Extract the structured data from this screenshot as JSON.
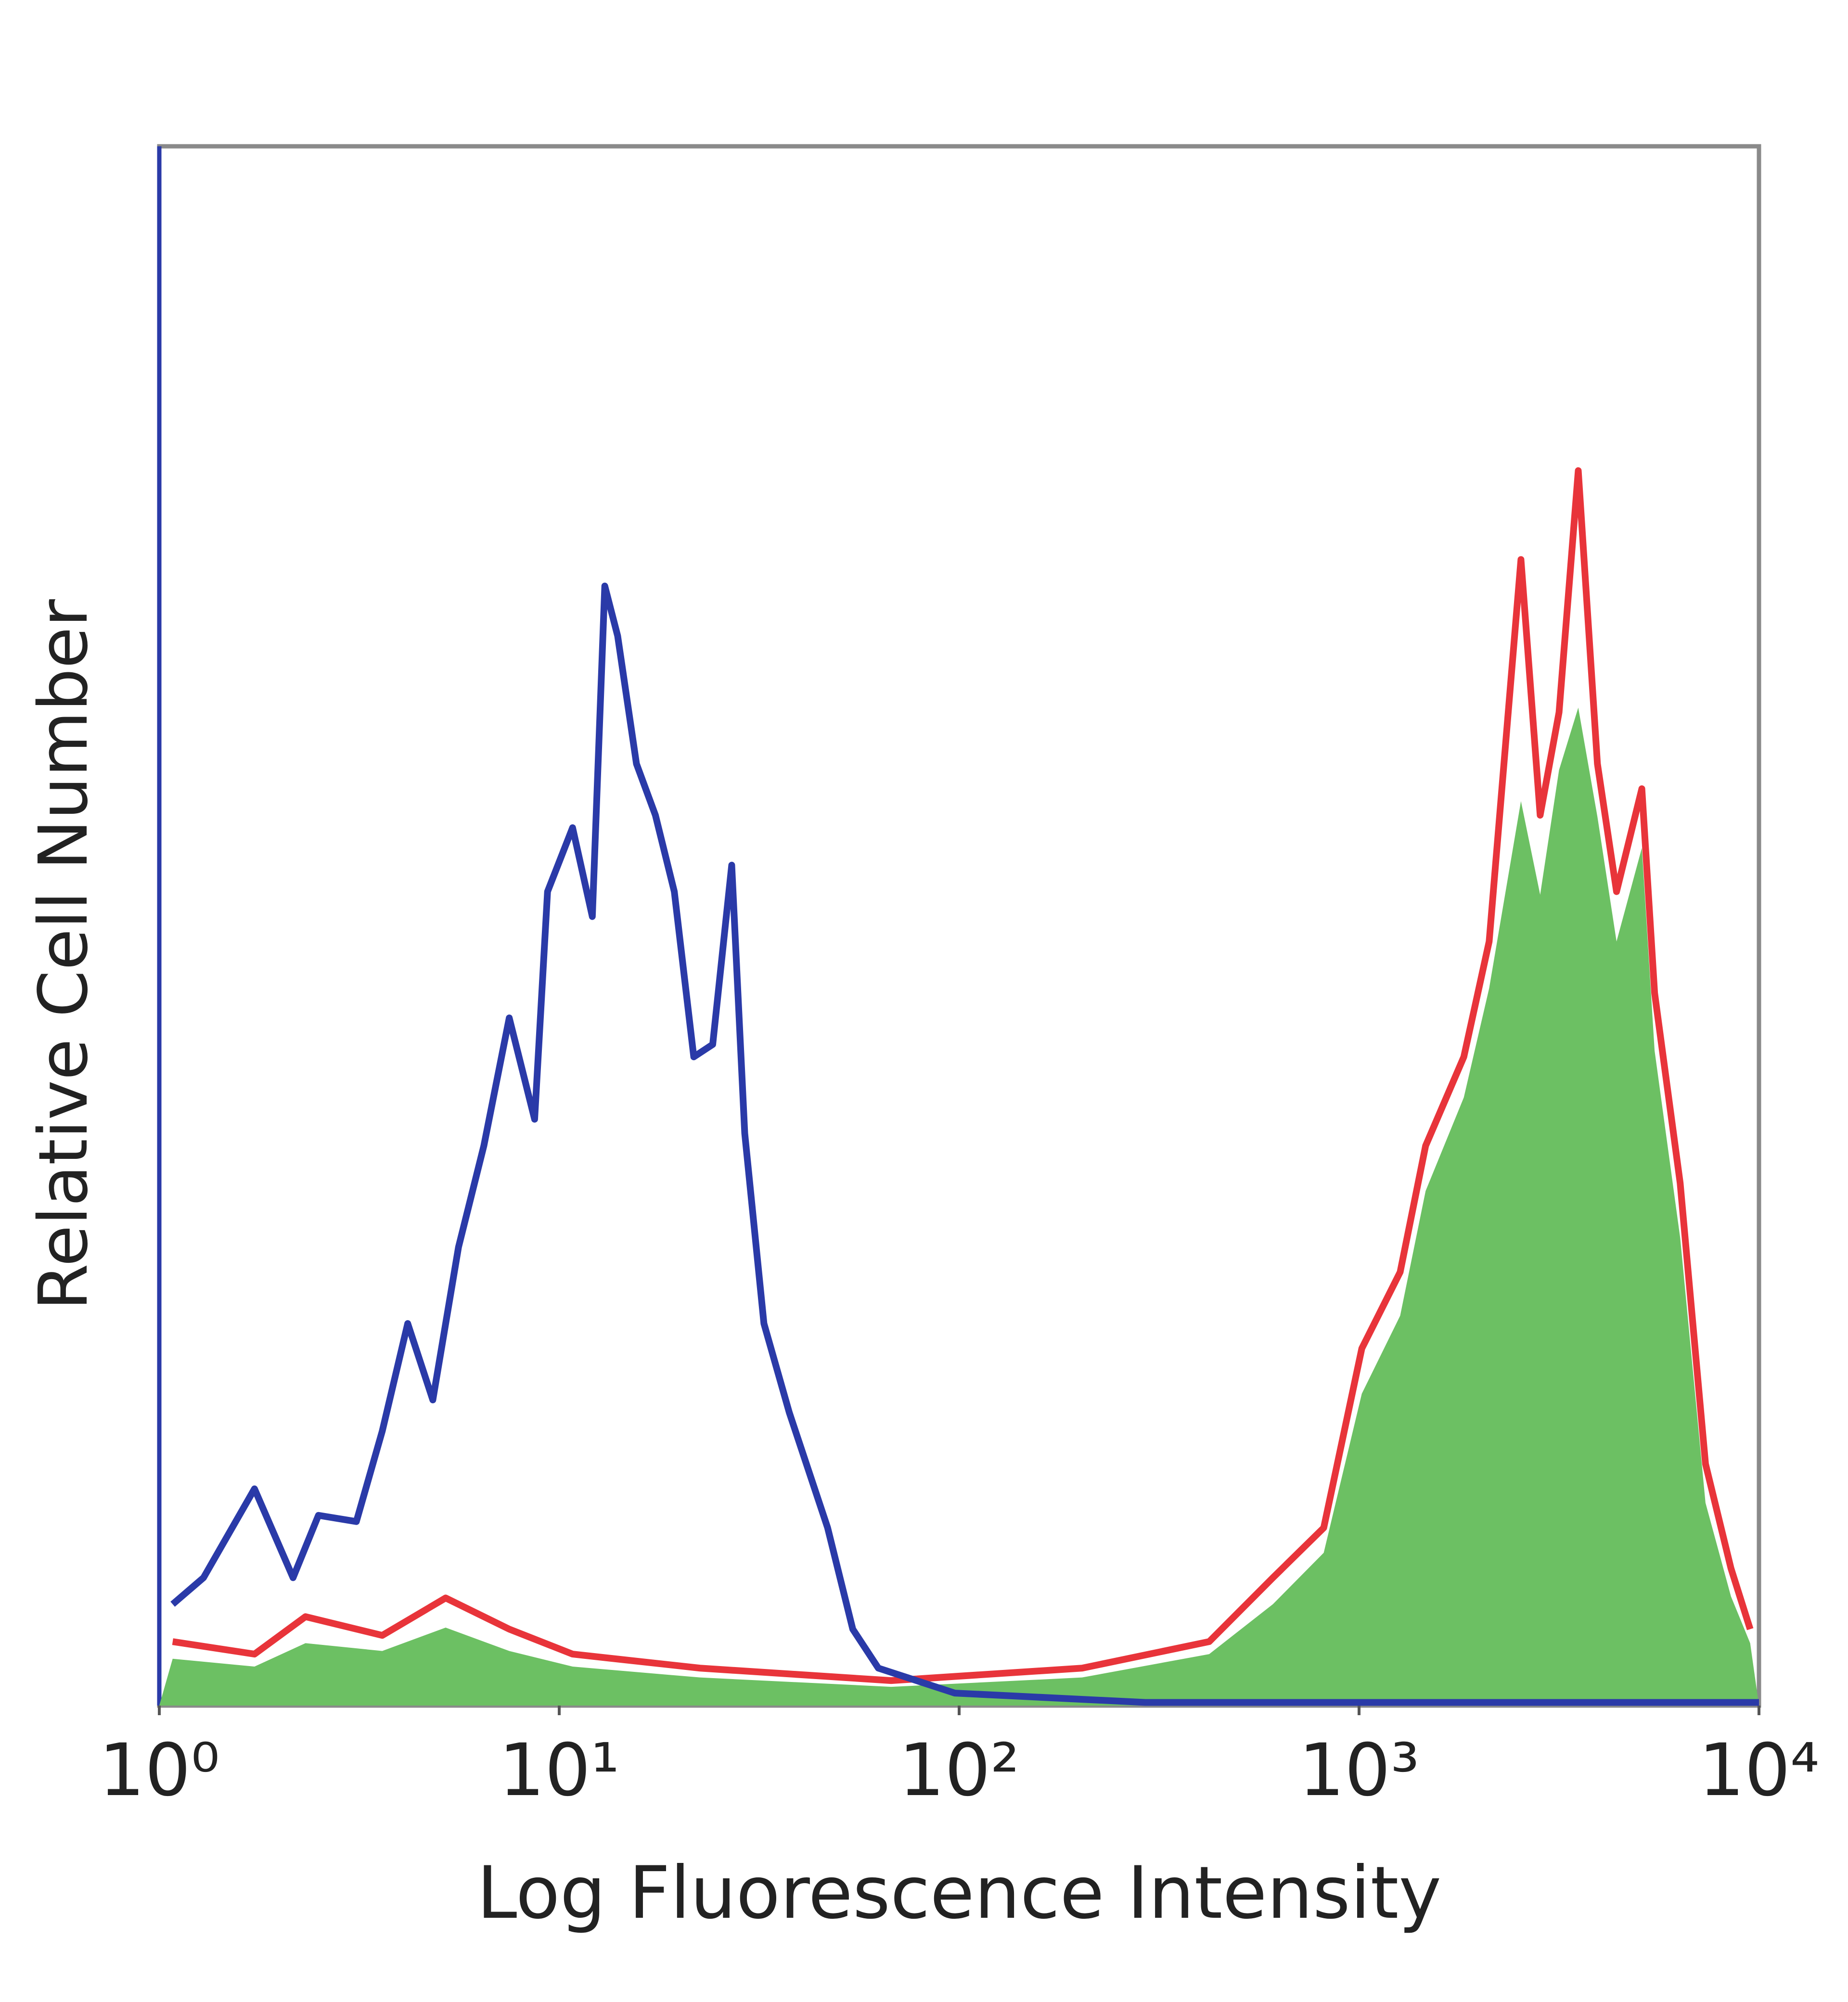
{
  "chart_data": {
    "type": "histogram-overlay",
    "x_label": "Log Fluorescence Intensity",
    "y_label": "Relative Cell Number",
    "xscale": "log",
    "xlim": [
      1,
      10000
    ],
    "ylim": [
      0,
      100
    ],
    "xticks": [
      {
        "value": 1,
        "label": "10⁰"
      },
      {
        "value": 10,
        "label": "10¹"
      },
      {
        "value": 100,
        "label": "10²"
      },
      {
        "value": 1000,
        "label": "10³"
      },
      {
        "value": 10000,
        "label": "10⁴"
      }
    ],
    "series": [
      {
        "style": "area",
        "color": "#6cc063",
        "x": [
          1.08,
          1.73,
          2.32,
          3.61,
          5.2,
          7.5,
          10.8,
          22.5,
          67.6,
          203,
          422,
          609,
          816,
          1016,
          1267,
          1467,
          1828,
          2115,
          2540,
          2837,
          3163,
          3533,
          3945,
          4404,
          5095,
          5483,
          6353,
          7350,
          8511,
          9506
        ],
        "values": [
          3.0,
          2.5,
          4.0,
          3.5,
          5.0,
          3.5,
          2.5,
          1.8,
          1.2,
          1.8,
          3.3,
          6.5,
          9.8,
          20,
          25,
          33,
          39,
          46,
          58,
          52,
          60,
          64,
          57,
          49,
          55,
          42,
          30,
          13,
          7,
          4
        ]
      },
      {
        "style": "line",
        "color": "#e8343a",
        "x": [
          1.08,
          1.73,
          2.32,
          3.61,
          5.2,
          7.5,
          10.8,
          22.5,
          67.6,
          203,
          422,
          609,
          816,
          1016,
          1267,
          1467,
          1828,
          2115,
          2540,
          2837,
          3163,
          3533,
          3945,
          4404,
          5095,
          5483,
          6353,
          7350,
          8511,
          9506
        ],
        "values": [
          4.1,
          3.3,
          5.7,
          4.5,
          6.9,
          4.9,
          3.3,
          2.4,
          1.6,
          2.4,
          4.1,
          8.2,
          11.4,
          22.9,
          27.8,
          35.9,
          41.6,
          49.0,
          73.5,
          57.1,
          63.7,
          79.2,
          60.4,
          52.2,
          58.8,
          45.7,
          33.5,
          15.5,
          8.8,
          4.9
        ]
      },
      {
        "style": "line",
        "color": "#2a3aa8",
        "x": [
          1.08,
          1.29,
          1.73,
          2.16,
          2.5,
          3.11,
          3.61,
          4.18,
          4.83,
          5.6,
          6.48,
          7.5,
          8.68,
          9.35,
          10.8,
          12.1,
          13.0,
          14.0,
          15.6,
          17.4,
          19.4,
          21.7,
          24.2,
          27.0,
          29.1,
          32.5,
          37.6,
          46.9,
          54.2,
          62.8,
          97.5,
          292,
          10000
        ],
        "values": [
          6.5,
          8.2,
          13.9,
          8.2,
          12.2,
          11.8,
          17.6,
          24.5,
          19.6,
          29.4,
          35.9,
          44.1,
          37.6,
          52.2,
          56.3,
          50.6,
          71.8,
          68.6,
          60.4,
          57.1,
          52.2,
          41.6,
          42.4,
          53.9,
          36.7,
          24.5,
          18.8,
          11.4,
          4.9,
          2.4,
          0.8,
          0.2,
          0.2
        ]
      }
    ]
  }
}
